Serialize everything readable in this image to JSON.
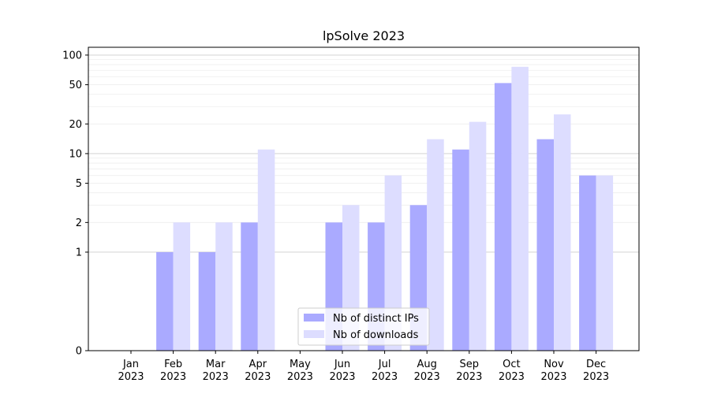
{
  "chart_data": {
    "type": "bar",
    "title": "lpSolve 2023",
    "xlabel": "",
    "ylabel": "",
    "y_scale": "symlog",
    "ylim": [
      0,
      120
    ],
    "y_ticks": [
      0,
      1,
      2,
      5,
      10,
      20,
      50,
      100
    ],
    "grid": "horizontal",
    "legend_position": "lower-center",
    "categories": [
      [
        "Jan",
        "2023"
      ],
      [
        "Feb",
        "2023"
      ],
      [
        "Mar",
        "2023"
      ],
      [
        "Apr",
        "2023"
      ],
      [
        "May",
        "2023"
      ],
      [
        "Jun",
        "2023"
      ],
      [
        "Jul",
        "2023"
      ],
      [
        "Aug",
        "2023"
      ],
      [
        "Sep",
        "2023"
      ],
      [
        "Oct",
        "2023"
      ],
      [
        "Nov",
        "2023"
      ],
      [
        "Dec",
        "2023"
      ]
    ],
    "series": [
      {
        "name": "Nb of distinct IPs",
        "color": "#aaaaff",
        "values": [
          0,
          1,
          1,
          2,
          0,
          2,
          2,
          3,
          11,
          52,
          14,
          6
        ]
      },
      {
        "name": "Nb of downloads",
        "color": "#ddddff",
        "values": [
          0,
          2,
          2,
          11,
          0,
          3,
          6,
          14,
          21,
          76,
          25,
          6
        ]
      }
    ]
  }
}
